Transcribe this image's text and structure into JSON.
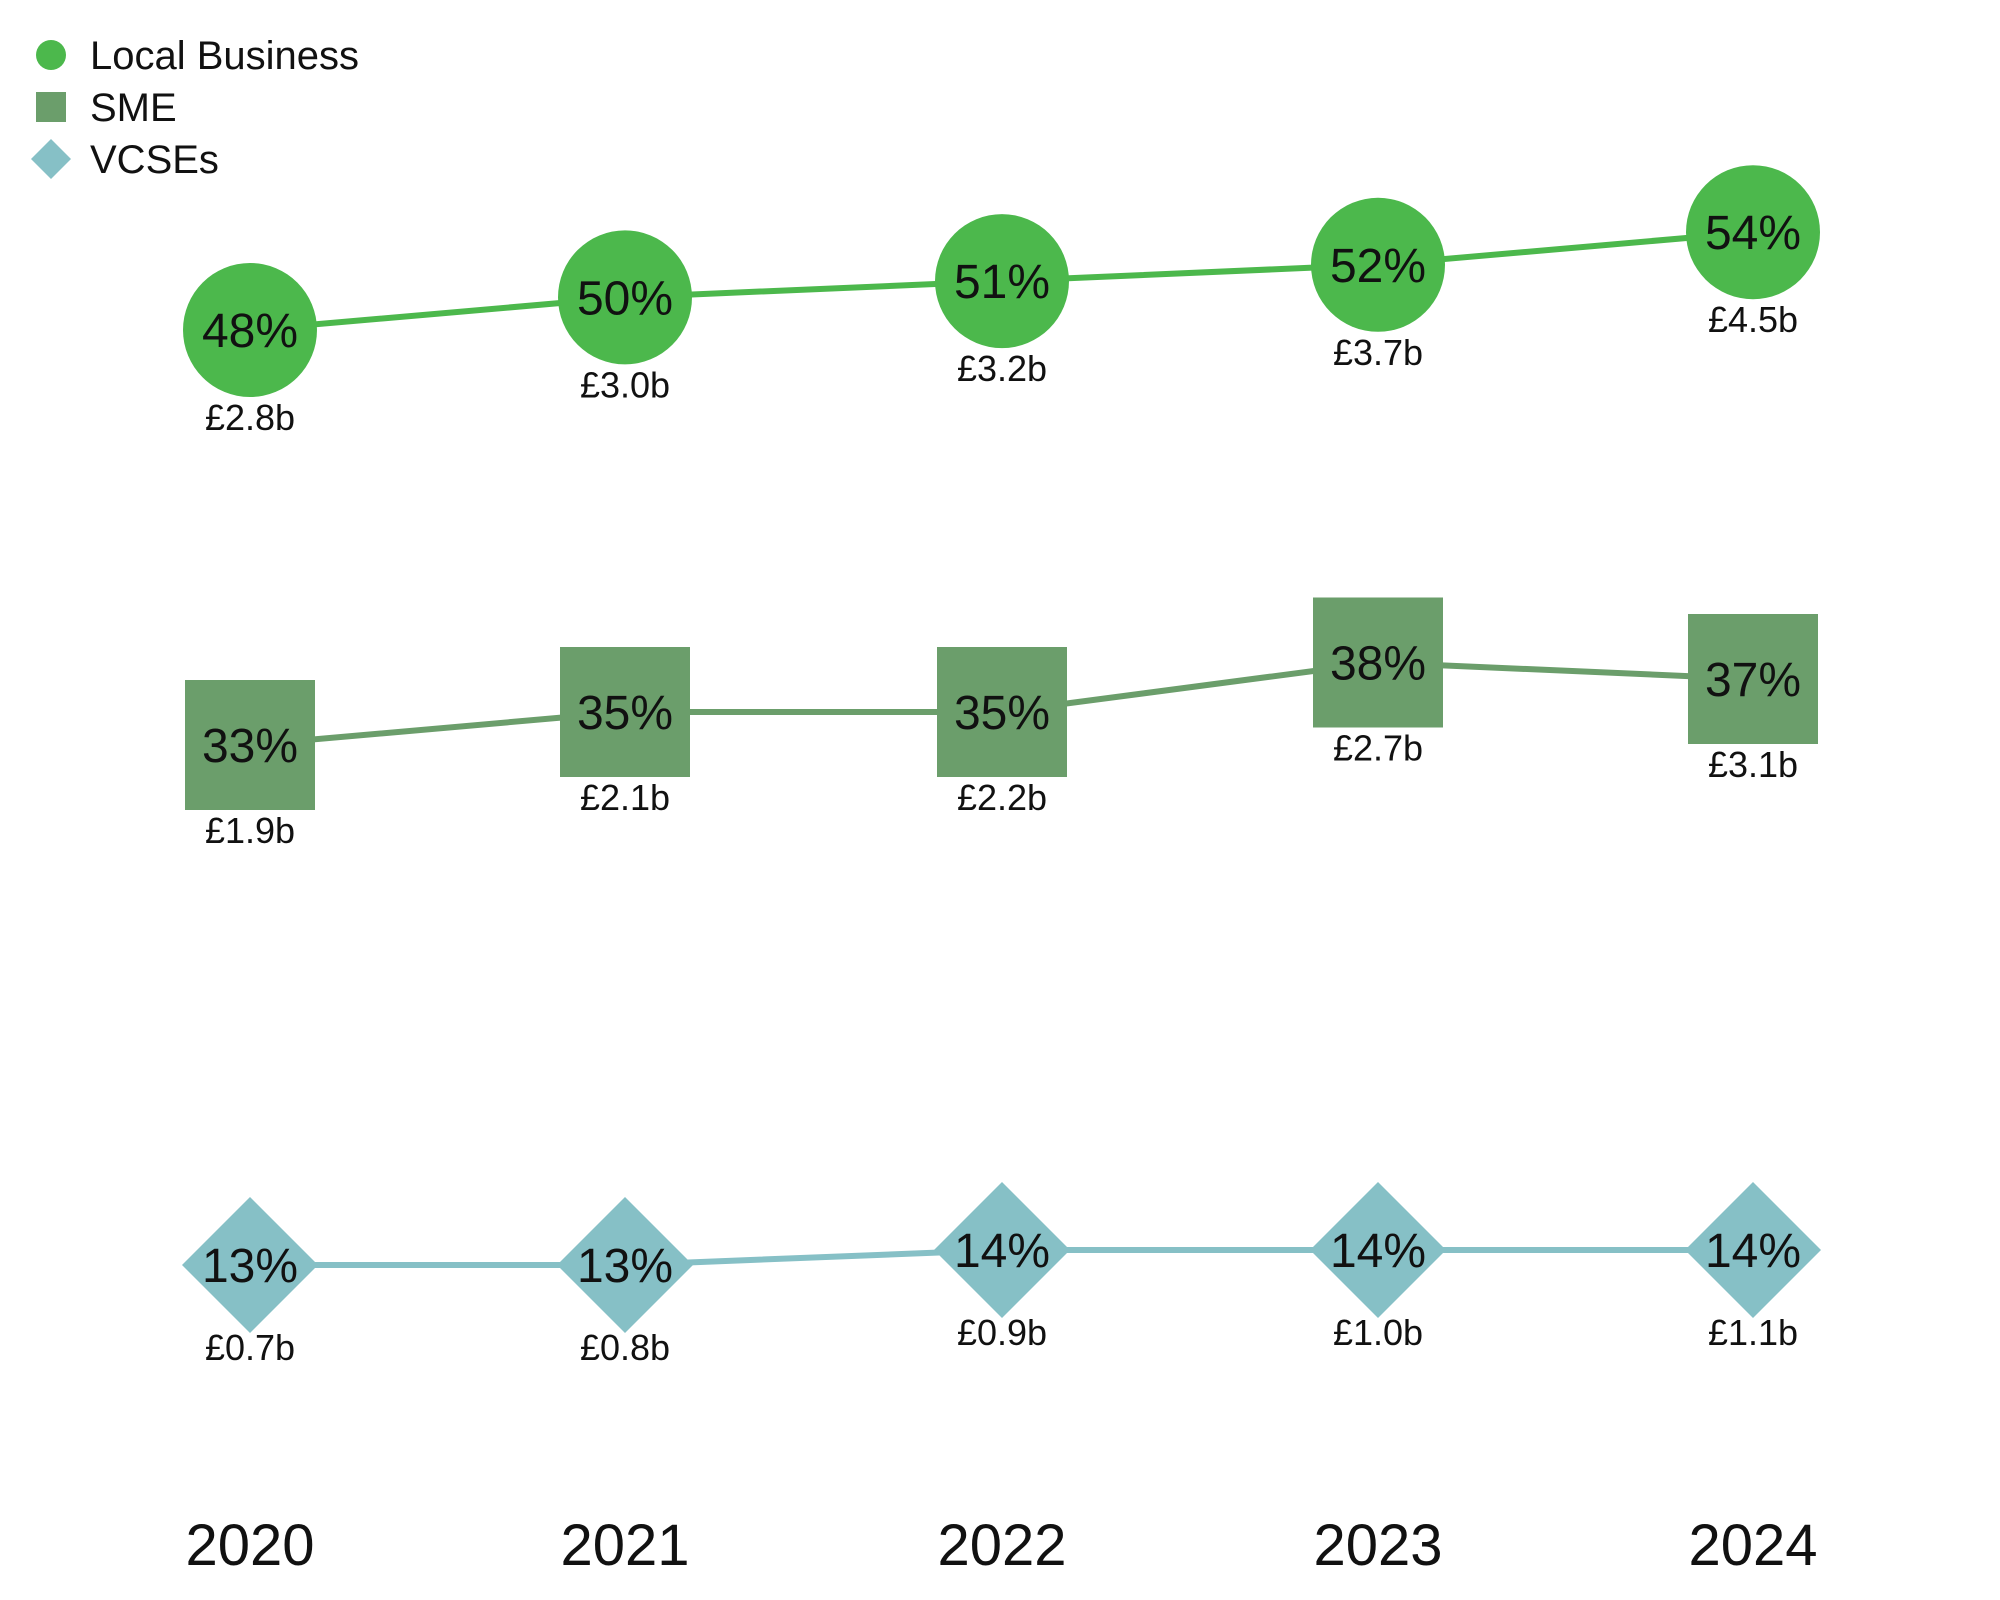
{
  "chart_data": {
    "type": "line",
    "categories": [
      "2020",
      "2021",
      "2022",
      "2023",
      "2024"
    ],
    "series": [
      {
        "name": "Local Business",
        "marker": "circle",
        "color": "#4cb84c",
        "values": [
          48,
          50,
          51,
          52,
          54
        ],
        "labels": [
          "48%",
          "50%",
          "51%",
          "52%",
          "54%"
        ],
        "amounts": [
          "£2.8b",
          "£3.0b",
          "£3.2b",
          "£3.7b",
          "£4.5b"
        ]
      },
      {
        "name": "SME",
        "marker": "square",
        "color": "#6b9e6b",
        "values": [
          33,
          35,
          35,
          38,
          37
        ],
        "labels": [
          "33%",
          "35%",
          "35%",
          "38%",
          "37%"
        ],
        "amounts": [
          "£1.9b",
          "£2.1b",
          "£2.2b",
          "£2.7b",
          "£3.1b"
        ]
      },
      {
        "name": "VCSEs",
        "marker": "diamond",
        "color": "#86c0c6",
        "values": [
          13,
          13,
          14,
          14,
          14
        ],
        "labels": [
          "13%",
          "13%",
          "14%",
          "14%",
          "14%"
        ],
        "amounts": [
          "£0.7b",
          "£0.8b",
          "£0.9b",
          "£1.0b",
          "£1.1b"
        ]
      }
    ],
    "legend_position": "top-left",
    "grid": false,
    "title": "",
    "xlabel": "",
    "ylabel": ""
  }
}
